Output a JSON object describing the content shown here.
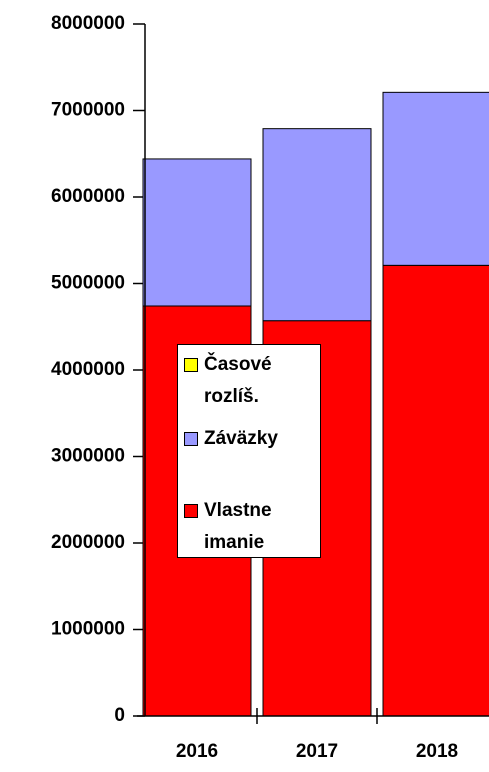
{
  "chart_data": {
    "type": "stacked_bar",
    "categories": [
      "2016",
      "2017",
      "2018"
    ],
    "series": [
      {
        "name": "Vlastne imanie",
        "color": "#ff0000",
        "values": [
          4740000,
          4570000,
          5210000
        ]
      },
      {
        "name": "Záväzky",
        "color": "#9999ff",
        "values": [
          1700000,
          2220000,
          2000000
        ]
      },
      {
        "name": "Časové rozlíš.",
        "color": "#ffff00",
        "values": [
          0,
          0,
          0
        ]
      }
    ],
    "ylim": [
      0,
      8000000
    ],
    "yticks": [
      0,
      1000000,
      2000000,
      3000000,
      4000000,
      5000000,
      6000000,
      7000000,
      8000000
    ],
    "grid": false
  }
}
